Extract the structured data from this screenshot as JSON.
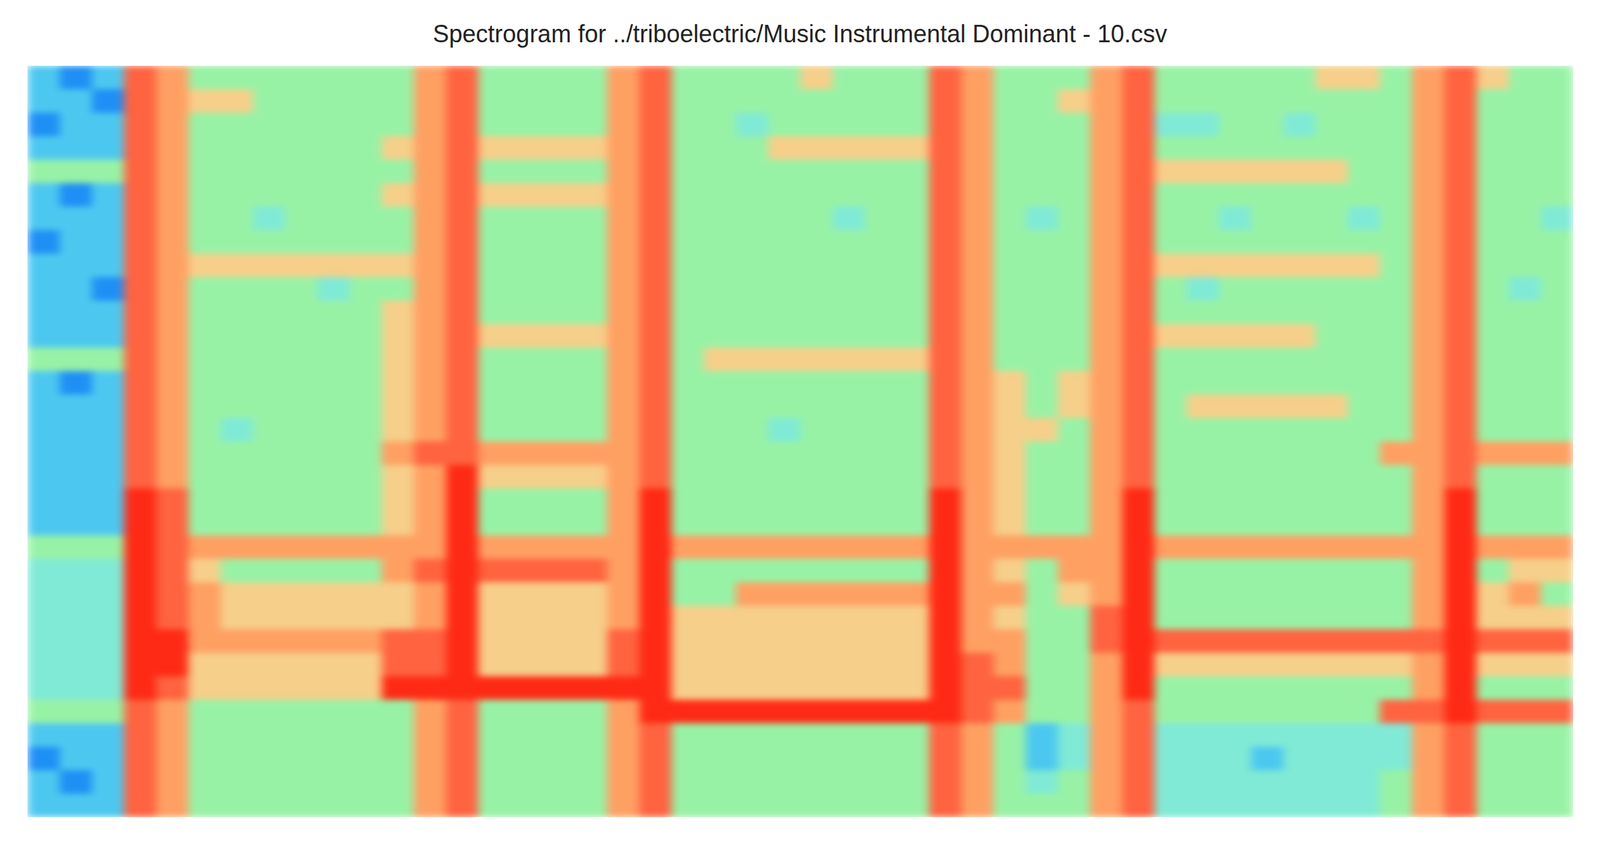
{
  "chart_data": {
    "type": "heatmap",
    "title": "Spectrogram for ../triboelectric/Music Instrumental Dominant - 10.csv",
    "tick_labels": false,
    "zlim": [
      0,
      9
    ],
    "cells": [
      [
        3,
        2,
        3,
        8,
        7,
        5,
        5,
        5,
        5,
        5,
        5,
        5,
        7,
        8,
        5,
        5,
        5,
        5,
        7,
        8,
        5,
        5,
        5,
        5,
        6,
        5,
        5,
        5,
        8,
        7,
        5,
        5,
        5,
        7,
        8,
        5,
        5,
        5,
        5,
        5,
        6,
        6,
        5,
        7,
        8,
        6,
        5,
        5
      ],
      [
        3,
        3,
        2,
        8,
        7,
        6,
        6,
        5,
        5,
        5,
        5,
        5,
        7,
        8,
        5,
        5,
        5,
        5,
        7,
        8,
        5,
        5,
        5,
        5,
        5,
        5,
        5,
        5,
        8,
        7,
        5,
        5,
        6,
        7,
        8,
        5,
        5,
        5,
        5,
        5,
        5,
        5,
        5,
        7,
        8,
        5,
        5,
        5
      ],
      [
        2,
        3,
        3,
        8,
        7,
        5,
        5,
        5,
        5,
        5,
        5,
        5,
        7,
        8,
        5,
        5,
        5,
        5,
        7,
        8,
        5,
        5,
        4,
        5,
        5,
        5,
        5,
        5,
        8,
        7,
        5,
        5,
        5,
        7,
        8,
        4,
        4,
        5,
        5,
        4,
        5,
        5,
        5,
        7,
        8,
        5,
        5,
        5
      ],
      [
        3,
        3,
        3,
        8,
        7,
        5,
        5,
        5,
        5,
        5,
        5,
        6,
        7,
        8,
        6,
        6,
        6,
        6,
        7,
        8,
        5,
        5,
        5,
        6,
        6,
        6,
        6,
        6,
        8,
        7,
        5,
        5,
        5,
        7,
        8,
        5,
        5,
        5,
        5,
        5,
        5,
        5,
        5,
        7,
        8,
        5,
        5,
        5
      ],
      [
        5,
        5,
        5,
        8,
        7,
        5,
        5,
        5,
        5,
        5,
        5,
        5,
        7,
        8,
        5,
        5,
        5,
        5,
        7,
        8,
        5,
        5,
        5,
        5,
        5,
        5,
        5,
        5,
        8,
        7,
        5,
        5,
        5,
        7,
        8,
        6,
        6,
        6,
        6,
        6,
        6,
        5,
        5,
        7,
        8,
        5,
        5,
        5
      ],
      [
        3,
        2,
        3,
        8,
        7,
        5,
        5,
        5,
        5,
        5,
        5,
        6,
        7,
        8,
        6,
        6,
        6,
        6,
        7,
        8,
        5,
        5,
        5,
        5,
        5,
        5,
        5,
        5,
        8,
        7,
        5,
        5,
        5,
        7,
        8,
        5,
        5,
        5,
        5,
        5,
        5,
        5,
        5,
        7,
        8,
        5,
        5,
        5
      ],
      [
        3,
        3,
        3,
        8,
        7,
        5,
        5,
        4,
        5,
        5,
        5,
        5,
        7,
        8,
        5,
        5,
        5,
        5,
        7,
        8,
        5,
        5,
        5,
        5,
        5,
        4,
        5,
        5,
        8,
        7,
        5,
        4,
        5,
        7,
        8,
        5,
        5,
        4,
        5,
        5,
        5,
        4,
        5,
        7,
        8,
        5,
        5,
        4
      ],
      [
        2,
        3,
        3,
        8,
        7,
        5,
        5,
        5,
        5,
        5,
        5,
        5,
        7,
        8,
        5,
        5,
        5,
        5,
        7,
        8,
        5,
        5,
        5,
        5,
        5,
        5,
        5,
        5,
        8,
        7,
        5,
        5,
        5,
        7,
        8,
        5,
        5,
        5,
        5,
        5,
        5,
        5,
        5,
        7,
        8,
        5,
        5,
        5
      ],
      [
        3,
        3,
        3,
        8,
        7,
        6,
        6,
        6,
        6,
        6,
        6,
        6,
        7,
        8,
        5,
        5,
        5,
        5,
        7,
        8,
        5,
        5,
        5,
        5,
        5,
        5,
        5,
        5,
        8,
        7,
        5,
        5,
        5,
        7,
        8,
        6,
        6,
        6,
        6,
        6,
        6,
        6,
        5,
        7,
        8,
        5,
        5,
        5
      ],
      [
        3,
        3,
        2,
        8,
        7,
        5,
        5,
        5,
        5,
        4,
        5,
        5,
        7,
        8,
        5,
        5,
        5,
        5,
        7,
        8,
        5,
        5,
        5,
        5,
        5,
        5,
        5,
        5,
        8,
        7,
        5,
        5,
        5,
        7,
        8,
        5,
        4,
        5,
        5,
        5,
        5,
        5,
        5,
        7,
        8,
        5,
        4,
        5
      ],
      [
        3,
        3,
        3,
        8,
        7,
        5,
        5,
        5,
        5,
        5,
        5,
        6,
        7,
        8,
        5,
        5,
        5,
        5,
        7,
        8,
        5,
        5,
        5,
        5,
        5,
        5,
        5,
        5,
        8,
        7,
        5,
        5,
        5,
        7,
        8,
        5,
        5,
        5,
        5,
        5,
        5,
        5,
        5,
        7,
        8,
        5,
        5,
        5
      ],
      [
        3,
        3,
        3,
        8,
        7,
        5,
        5,
        5,
        5,
        5,
        5,
        6,
        7,
        8,
        6,
        6,
        6,
        6,
        7,
        8,
        5,
        5,
        5,
        5,
        5,
        5,
        5,
        5,
        8,
        7,
        5,
        5,
        5,
        7,
        8,
        6,
        6,
        6,
        6,
        6,
        5,
        5,
        5,
        7,
        8,
        5,
        5,
        5
      ],
      [
        5,
        5,
        5,
        8,
        7,
        5,
        5,
        5,
        5,
        5,
        5,
        6,
        7,
        8,
        5,
        5,
        5,
        5,
        7,
        8,
        5,
        6,
        6,
        6,
        6,
        6,
        6,
        6,
        8,
        7,
        5,
        5,
        5,
        7,
        8,
        5,
        5,
        5,
        5,
        5,
        5,
        5,
        5,
        7,
        8,
        5,
        5,
        5
      ],
      [
        3,
        2,
        3,
        8,
        7,
        5,
        5,
        5,
        5,
        5,
        5,
        6,
        7,
        8,
        5,
        5,
        5,
        5,
        7,
        8,
        5,
        5,
        5,
        5,
        5,
        5,
        5,
        5,
        8,
        7,
        6,
        5,
        6,
        7,
        8,
        5,
        5,
        5,
        5,
        5,
        5,
        5,
        5,
        7,
        8,
        5,
        5,
        5
      ],
      [
        3,
        3,
        3,
        8,
        7,
        5,
        5,
        5,
        5,
        5,
        5,
        6,
        7,
        8,
        5,
        5,
        5,
        5,
        7,
        8,
        5,
        5,
        5,
        5,
        5,
        5,
        5,
        5,
        8,
        7,
        6,
        5,
        6,
        7,
        8,
        5,
        6,
        6,
        6,
        6,
        6,
        5,
        5,
        7,
        8,
        5,
        5,
        5
      ],
      [
        3,
        3,
        3,
        8,
        7,
        5,
        4,
        5,
        5,
        5,
        5,
        6,
        7,
        8,
        5,
        5,
        5,
        5,
        7,
        8,
        5,
        5,
        5,
        4,
        5,
        5,
        5,
        5,
        8,
        7,
        6,
        6,
        5,
        7,
        8,
        5,
        5,
        5,
        5,
        5,
        5,
        5,
        5,
        7,
        8,
        5,
        5,
        5
      ],
      [
        3,
        3,
        3,
        8,
        7,
        5,
        5,
        5,
        5,
        5,
        5,
        7,
        8,
        8,
        7,
        7,
        7,
        7,
        7,
        8,
        5,
        5,
        5,
        5,
        5,
        5,
        5,
        5,
        8,
        7,
        6,
        5,
        5,
        7,
        8,
        5,
        5,
        5,
        5,
        5,
        5,
        5,
        7,
        7,
        8,
        7,
        7,
        7
      ],
      [
        3,
        3,
        3,
        8,
        7,
        5,
        5,
        5,
        5,
        5,
        5,
        6,
        7,
        9,
        6,
        6,
        6,
        6,
        7,
        8,
        5,
        5,
        5,
        5,
        5,
        5,
        5,
        5,
        8,
        7,
        6,
        5,
        5,
        7,
        8,
        5,
        5,
        5,
        5,
        5,
        5,
        5,
        5,
        7,
        8,
        5,
        5,
        5
      ],
      [
        3,
        3,
        3,
        9,
        8,
        5,
        5,
        5,
        5,
        5,
        5,
        6,
        7,
        9,
        5,
        5,
        5,
        5,
        7,
        9,
        5,
        5,
        5,
        5,
        5,
        5,
        5,
        5,
        9,
        7,
        6,
        5,
        5,
        7,
        9,
        5,
        5,
        5,
        5,
        5,
        5,
        5,
        5,
        7,
        9,
        5,
        5,
        5
      ],
      [
        3,
        3,
        3,
        9,
        8,
        5,
        5,
        5,
        5,
        5,
        5,
        6,
        7,
        9,
        5,
        5,
        5,
        5,
        7,
        9,
        5,
        5,
        5,
        5,
        5,
        5,
        5,
        5,
        9,
        7,
        6,
        5,
        5,
        7,
        9,
        5,
        5,
        5,
        5,
        5,
        5,
        5,
        5,
        7,
        9,
        5,
        5,
        5
      ],
      [
        5,
        5,
        5,
        9,
        8,
        7,
        7,
        7,
        7,
        7,
        7,
        7,
        7,
        9,
        7,
        7,
        7,
        7,
        7,
        9,
        7,
        7,
        7,
        7,
        7,
        7,
        7,
        7,
        9,
        7,
        7,
        7,
        7,
        7,
        9,
        7,
        7,
        7,
        7,
        7,
        7,
        7,
        7,
        7,
        9,
        7,
        7,
        7
      ],
      [
        4,
        4,
        4,
        9,
        8,
        6,
        5,
        5,
        5,
        5,
        5,
        7,
        8,
        9,
        8,
        8,
        8,
        8,
        7,
        9,
        5,
        5,
        5,
        5,
        5,
        5,
        5,
        5,
        9,
        7,
        6,
        5,
        7,
        7,
        9,
        5,
        5,
        5,
        5,
        5,
        5,
        5,
        5,
        7,
        9,
        5,
        6,
        6
      ],
      [
        4,
        4,
        4,
        9,
        8,
        7,
        6,
        6,
        6,
        6,
        6,
        6,
        7,
        9,
        6,
        6,
        6,
        6,
        7,
        9,
        5,
        5,
        7,
        7,
        7,
        7,
        7,
        7,
        9,
        7,
        7,
        5,
        6,
        7,
        9,
        5,
        5,
        5,
        5,
        5,
        5,
        5,
        5,
        7,
        9,
        6,
        7,
        5
      ],
      [
        4,
        4,
        4,
        9,
        8,
        7,
        6,
        6,
        6,
        6,
        6,
        6,
        7,
        9,
        6,
        6,
        6,
        6,
        7,
        9,
        6,
        6,
        6,
        6,
        6,
        6,
        6,
        6,
        9,
        7,
        6,
        5,
        5,
        8,
        9,
        5,
        5,
        5,
        5,
        5,
        5,
        5,
        5,
        7,
        9,
        6,
        6,
        6
      ],
      [
        4,
        4,
        4,
        9,
        9,
        7,
        7,
        7,
        7,
        7,
        7,
        8,
        8,
        9,
        6,
        6,
        6,
        6,
        8,
        9,
        6,
        6,
        6,
        6,
        6,
        6,
        6,
        6,
        9,
        7,
        7,
        5,
        5,
        8,
        9,
        8,
        8,
        8,
        8,
        8,
        8,
        8,
        8,
        8,
        9,
        8,
        8,
        8
      ],
      [
        4,
        4,
        4,
        9,
        9,
        6,
        6,
        6,
        6,
        6,
        6,
        8,
        8,
        9,
        6,
        6,
        6,
        6,
        8,
        9,
        6,
        6,
        6,
        6,
        6,
        6,
        6,
        6,
        9,
        8,
        7,
        5,
        5,
        7,
        9,
        6,
        6,
        6,
        6,
        6,
        6,
        6,
        6,
        7,
        9,
        6,
        6,
        6
      ],
      [
        4,
        4,
        4,
        9,
        8,
        6,
        6,
        6,
        6,
        6,
        6,
        9,
        9,
        9,
        9,
        9,
        9,
        9,
        9,
        9,
        6,
        6,
        6,
        6,
        6,
        6,
        6,
        6,
        9,
        8,
        8,
        5,
        5,
        7,
        9,
        5,
        5,
        5,
        5,
        5,
        5,
        5,
        5,
        7,
        9,
        5,
        5,
        5
      ],
      [
        5,
        5,
        5,
        8,
        7,
        5,
        5,
        5,
        5,
        5,
        5,
        5,
        7,
        8,
        5,
        5,
        5,
        5,
        7,
        9,
        9,
        9,
        9,
        9,
        9,
        9,
        9,
        9,
        9,
        8,
        7,
        5,
        5,
        7,
        8,
        5,
        5,
        5,
        5,
        5,
        5,
        5,
        8,
        8,
        9,
        8,
        8,
        8
      ],
      [
        3,
        3,
        3,
        8,
        7,
        5,
        5,
        5,
        5,
        5,
        5,
        5,
        7,
        8,
        5,
        5,
        5,
        5,
        7,
        8,
        5,
        5,
        5,
        5,
        5,
        5,
        5,
        5,
        8,
        7,
        5,
        3,
        4,
        7,
        8,
        4,
        4,
        4,
        4,
        4,
        4,
        4,
        4,
        7,
        8,
        5,
        5,
        5
      ],
      [
        2,
        3,
        3,
        8,
        7,
        5,
        5,
        5,
        5,
        5,
        5,
        5,
        7,
        8,
        5,
        5,
        5,
        5,
        7,
        8,
        5,
        5,
        5,
        5,
        5,
        5,
        5,
        5,
        8,
        7,
        5,
        3,
        4,
        7,
        8,
        4,
        4,
        4,
        3,
        4,
        4,
        4,
        4,
        7,
        8,
        5,
        5,
        5
      ],
      [
        3,
        2,
        3,
        8,
        7,
        5,
        5,
        5,
        5,
        5,
        5,
        5,
        7,
        8,
        5,
        5,
        5,
        5,
        7,
        8,
        5,
        5,
        5,
        5,
        5,
        5,
        5,
        5,
        8,
        7,
        5,
        4,
        5,
        7,
        8,
        4,
        4,
        4,
        4,
        4,
        4,
        4,
        5,
        7,
        8,
        5,
        5,
        5
      ],
      [
        3,
        3,
        3,
        8,
        7,
        5,
        5,
        5,
        5,
        5,
        5,
        5,
        7,
        8,
        5,
        5,
        5,
        5,
        7,
        8,
        5,
        5,
        5,
        5,
        5,
        5,
        5,
        5,
        8,
        7,
        5,
        5,
        5,
        7,
        8,
        4,
        4,
        4,
        4,
        4,
        4,
        4,
        5,
        7,
        8,
        5,
        5,
        5
      ]
    ]
  }
}
